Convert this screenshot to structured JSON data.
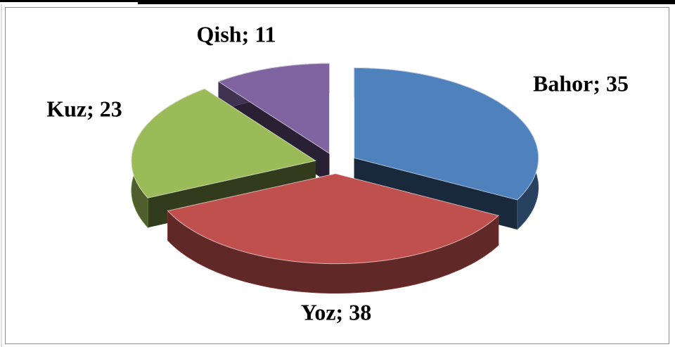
{
  "chart_data": {
    "type": "pie",
    "values": [
      35,
      38,
      23,
      11
    ],
    "value_labels": [
      "Bahor; 35",
      "Yoz; 38",
      "Kuz; 23",
      "Qish; 11"
    ],
    "colors": [
      "#4f81bd",
      "#c0504d",
      "#9bbb59",
      "#8064a2"
    ]
  }
}
